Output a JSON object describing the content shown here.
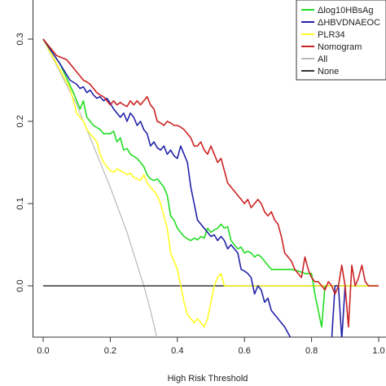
{
  "chart_data": {
    "type": "line",
    "xlabel": "High Risk Threshold",
    "ylabel": "",
    "xlim": [
      0,
      1.0
    ],
    "ylim": [
      -0.065,
      0.33
    ],
    "x_ticks": [
      0.0,
      0.2,
      0.4,
      0.6,
      0.8,
      1.0
    ],
    "x_tick_labels": [
      "0.0",
      "0.2",
      "0.4",
      "0.6",
      "0.8",
      "1.0"
    ],
    "y_ticks": [
      0.0,
      0.1,
      0.2,
      0.3
    ],
    "y_tick_labels": [
      "0.0",
      "0.1",
      "0.2",
      "0.3"
    ],
    "legend_position": "top-right",
    "series": [
      {
        "name": "Δlog10HBsAg",
        "color": "#22dd22",
        "points": [
          [
            0,
            0.3
          ],
          [
            0.05,
            0.27
          ],
          [
            0.09,
            0.235
          ],
          [
            0.11,
            0.215
          ],
          [
            0.12,
            0.225
          ],
          [
            0.13,
            0.205
          ],
          [
            0.15,
            0.195
          ],
          [
            0.17,
            0.19
          ],
          [
            0.18,
            0.185
          ],
          [
            0.2,
            0.185
          ],
          [
            0.21,
            0.188
          ],
          [
            0.22,
            0.175
          ],
          [
            0.23,
            0.18
          ],
          [
            0.24,
            0.165
          ],
          [
            0.25,
            0.167
          ],
          [
            0.26,
            0.16
          ],
          [
            0.28,
            0.155
          ],
          [
            0.29,
            0.15
          ],
          [
            0.3,
            0.145
          ],
          [
            0.31,
            0.135
          ],
          [
            0.32,
            0.13
          ],
          [
            0.33,
            0.128
          ],
          [
            0.34,
            0.13
          ],
          [
            0.35,
            0.125
          ],
          [
            0.36,
            0.12
          ],
          [
            0.37,
            0.11
          ],
          [
            0.38,
            0.085
          ],
          [
            0.39,
            0.08
          ],
          [
            0.4,
            0.07
          ],
          [
            0.41,
            0.065
          ],
          [
            0.42,
            0.06
          ],
          [
            0.43,
            0.057
          ],
          [
            0.44,
            0.055
          ],
          [
            0.45,
            0.058
          ],
          [
            0.46,
            0.056
          ],
          [
            0.47,
            0.06
          ],
          [
            0.48,
            0.058
          ],
          [
            0.49,
            0.07
          ],
          [
            0.5,
            0.065
          ],
          [
            0.51,
            0.068
          ],
          [
            0.52,
            0.07
          ],
          [
            0.53,
            0.075
          ],
          [
            0.54,
            0.07
          ],
          [
            0.55,
            0.072
          ],
          [
            0.56,
            0.055
          ],
          [
            0.57,
            0.05
          ],
          [
            0.58,
            0.045
          ],
          [
            0.59,
            0.047
          ],
          [
            0.6,
            0.04
          ],
          [
            0.61,
            0.042
          ],
          [
            0.62,
            0.04
          ],
          [
            0.63,
            0.035
          ],
          [
            0.64,
            0.038
          ],
          [
            0.65,
            0.035
          ],
          [
            0.66,
            0.03
          ],
          [
            0.67,
            0.025
          ],
          [
            0.68,
            0.02
          ],
          [
            0.7,
            0.02
          ],
          [
            0.72,
            0.02
          ],
          [
            0.74,
            0.02
          ],
          [
            0.76,
            0.018
          ],
          [
            0.78,
            0.015
          ],
          [
            0.8,
            0.015
          ],
          [
            0.81,
            -0.01
          ],
          [
            0.82,
            -0.03
          ],
          [
            0.83,
            -0.05
          ],
          [
            0.84,
            0.0
          ]
        ]
      },
      {
        "name": "ΔHBVDNAEOC",
        "color": "#2222aa",
        "points": [
          [
            0,
            0.3
          ],
          [
            0.05,
            0.27
          ],
          [
            0.08,
            0.25
          ],
          [
            0.1,
            0.245
          ],
          [
            0.11,
            0.24
          ],
          [
            0.12,
            0.242
          ],
          [
            0.13,
            0.235
          ],
          [
            0.14,
            0.238
          ],
          [
            0.15,
            0.232
          ],
          [
            0.16,
            0.228
          ],
          [
            0.17,
            0.23
          ],
          [
            0.18,
            0.225
          ],
          [
            0.19,
            0.228
          ],
          [
            0.2,
            0.222
          ],
          [
            0.21,
            0.215
          ],
          [
            0.22,
            0.21
          ],
          [
            0.23,
            0.205
          ],
          [
            0.24,
            0.21
          ],
          [
            0.25,
            0.2
          ],
          [
            0.26,
            0.21
          ],
          [
            0.27,
            0.205
          ],
          [
            0.28,
            0.195
          ],
          [
            0.29,
            0.2
          ],
          [
            0.3,
            0.19
          ],
          [
            0.31,
            0.185
          ],
          [
            0.32,
            0.17
          ],
          [
            0.33,
            0.175
          ],
          [
            0.34,
            0.168
          ],
          [
            0.35,
            0.165
          ],
          [
            0.36,
            0.17
          ],
          [
            0.37,
            0.16
          ],
          [
            0.38,
            0.165
          ],
          [
            0.39,
            0.158
          ],
          [
            0.4,
            0.155
          ],
          [
            0.41,
            0.17
          ],
          [
            0.42,
            0.16
          ],
          [
            0.43,
            0.15
          ],
          [
            0.44,
            0.12
          ],
          [
            0.45,
            0.1
          ],
          [
            0.46,
            0.08
          ],
          [
            0.47,
            0.075
          ],
          [
            0.48,
            0.07
          ],
          [
            0.49,
            0.065
          ],
          [
            0.5,
            0.06
          ],
          [
            0.51,
            0.062
          ],
          [
            0.52,
            0.055
          ],
          [
            0.53,
            0.06
          ],
          [
            0.54,
            0.055
          ],
          [
            0.55,
            0.045
          ],
          [
            0.56,
            0.05
          ],
          [
            0.57,
            0.045
          ],
          [
            0.58,
            0.04
          ],
          [
            0.59,
            0.02
          ],
          [
            0.6,
            0.018
          ],
          [
            0.61,
            0.015
          ],
          [
            0.62,
            0.01
          ],
          [
            0.63,
            -0.01
          ],
          [
            0.64,
            0.0
          ],
          [
            0.65,
            -0.005
          ],
          [
            0.66,
            -0.02
          ],
          [
            0.67,
            -0.015
          ],
          [
            0.68,
            -0.03
          ],
          [
            0.7,
            -0.04
          ],
          [
            0.72,
            -0.05
          ],
          [
            0.74,
            -0.065
          ],
          [
            0.76,
            -0.065
          ],
          [
            0.78,
            -0.065
          ],
          [
            0.79,
            -0.065
          ],
          [
            0.8,
            -0.065
          ],
          [
            0.82,
            -0.065
          ],
          [
            0.84,
            -0.065
          ],
          [
            0.86,
            -0.065
          ],
          [
            0.87,
            0.0
          ],
          [
            0.88,
            0.0
          ],
          [
            0.89,
            -0.065
          ],
          [
            0.9,
            0.0
          ]
        ]
      },
      {
        "name": "PLR34",
        "color": "#ffff22",
        "points": [
          [
            0,
            0.3
          ],
          [
            0.04,
            0.27
          ],
          [
            0.08,
            0.24
          ],
          [
            0.1,
            0.21
          ],
          [
            0.11,
            0.205
          ],
          [
            0.12,
            0.2
          ],
          [
            0.13,
            0.19
          ],
          [
            0.14,
            0.185
          ],
          [
            0.15,
            0.18
          ],
          [
            0.16,
            0.175
          ],
          [
            0.17,
            0.16
          ],
          [
            0.18,
            0.15
          ],
          [
            0.19,
            0.145
          ],
          [
            0.2,
            0.14
          ],
          [
            0.21,
            0.138
          ],
          [
            0.22,
            0.142
          ],
          [
            0.23,
            0.14
          ],
          [
            0.24,
            0.138
          ],
          [
            0.25,
            0.135
          ],
          [
            0.26,
            0.137
          ],
          [
            0.27,
            0.132
          ],
          [
            0.28,
            0.13
          ],
          [
            0.29,
            0.128
          ],
          [
            0.3,
            0.135
          ],
          [
            0.31,
            0.125
          ],
          [
            0.32,
            0.12
          ],
          [
            0.33,
            0.115
          ],
          [
            0.34,
            0.11
          ],
          [
            0.35,
            0.1
          ],
          [
            0.36,
            0.085
          ],
          [
            0.37,
            0.07
          ],
          [
            0.38,
            0.04
          ],
          [
            0.39,
            0.03
          ],
          [
            0.4,
            0.02
          ],
          [
            0.41,
            0.0
          ],
          [
            0.42,
            -0.02
          ],
          [
            0.43,
            -0.035
          ],
          [
            0.44,
            -0.04
          ],
          [
            0.45,
            -0.045
          ],
          [
            0.46,
            -0.04
          ],
          [
            0.47,
            -0.045
          ],
          [
            0.48,
            -0.05
          ],
          [
            0.49,
            -0.04
          ],
          [
            0.5,
            -0.02
          ],
          [
            0.51,
            0.0
          ],
          [
            0.52,
            0.01
          ],
          [
            0.53,
            0.015
          ],
          [
            0.54,
            0.0
          ],
          [
            0.56,
            0.0
          ],
          [
            0.6,
            0.0
          ],
          [
            0.7,
            0.0
          ],
          [
            0.8,
            0.0
          ],
          [
            0.9,
            0.0
          ],
          [
            1.0,
            0.0
          ]
        ]
      },
      {
        "name": "Nomogram",
        "color": "#cc2222",
        "points": [
          [
            0,
            0.3
          ],
          [
            0.04,
            0.28
          ],
          [
            0.07,
            0.275
          ],
          [
            0.08,
            0.27
          ],
          [
            0.09,
            0.265
          ],
          [
            0.1,
            0.26
          ],
          [
            0.11,
            0.255
          ],
          [
            0.12,
            0.25
          ],
          [
            0.13,
            0.248
          ],
          [
            0.14,
            0.245
          ],
          [
            0.15,
            0.24
          ],
          [
            0.16,
            0.235
          ],
          [
            0.17,
            0.232
          ],
          [
            0.18,
            0.23
          ],
          [
            0.19,
            0.225
          ],
          [
            0.2,
            0.22
          ],
          [
            0.21,
            0.225
          ],
          [
            0.22,
            0.22
          ],
          [
            0.23,
            0.223
          ],
          [
            0.24,
            0.22
          ],
          [
            0.25,
            0.218
          ],
          [
            0.26,
            0.225
          ],
          [
            0.27,
            0.22
          ],
          [
            0.28,
            0.225
          ],
          [
            0.29,
            0.22
          ],
          [
            0.3,
            0.225
          ],
          [
            0.31,
            0.23
          ],
          [
            0.32,
            0.22
          ],
          [
            0.33,
            0.215
          ],
          [
            0.34,
            0.2
          ],
          [
            0.35,
            0.198
          ],
          [
            0.36,
            0.195
          ],
          [
            0.37,
            0.2
          ],
          [
            0.38,
            0.198
          ],
          [
            0.39,
            0.195
          ],
          [
            0.4,
            0.195
          ],
          [
            0.41,
            0.193
          ],
          [
            0.42,
            0.19
          ],
          [
            0.43,
            0.185
          ],
          [
            0.44,
            0.18
          ],
          [
            0.45,
            0.17
          ],
          [
            0.46,
            0.17
          ],
          [
            0.47,
            0.175
          ],
          [
            0.48,
            0.165
          ],
          [
            0.49,
            0.16
          ],
          [
            0.5,
            0.17
          ],
          [
            0.51,
            0.16
          ],
          [
            0.52,
            0.15
          ],
          [
            0.53,
            0.155
          ],
          [
            0.54,
            0.14
          ],
          [
            0.55,
            0.125
          ],
          [
            0.56,
            0.12
          ],
          [
            0.57,
            0.115
          ],
          [
            0.58,
            0.11
          ],
          [
            0.59,
            0.105
          ],
          [
            0.6,
            0.1
          ],
          [
            0.61,
            0.105
          ],
          [
            0.62,
            0.095
          ],
          [
            0.63,
            0.1
          ],
          [
            0.64,
            0.105
          ],
          [
            0.65,
            0.1
          ],
          [
            0.66,
            0.09
          ],
          [
            0.67,
            0.085
          ],
          [
            0.68,
            0.09
          ],
          [
            0.69,
            0.08
          ],
          [
            0.7,
            0.075
          ],
          [
            0.71,
            0.06
          ],
          [
            0.72,
            0.04
          ],
          [
            0.73,
            0.035
          ],
          [
            0.74,
            0.03
          ],
          [
            0.75,
            0.02
          ],
          [
            0.76,
            0.015
          ],
          [
            0.77,
            0.01
          ],
          [
            0.78,
            0.035
          ],
          [
            0.79,
            0.02
          ],
          [
            0.8,
            0.01
          ],
          [
            0.81,
            0.005
          ],
          [
            0.82,
            0.005
          ],
          [
            0.83,
            0.0
          ],
          [
            0.84,
            -0.005
          ],
          [
            0.85,
            0.005
          ],
          [
            0.86,
            0.0
          ],
          [
            0.87,
            -0.01
          ],
          [
            0.88,
            0.0
          ],
          [
            0.89,
            0.025
          ],
          [
            0.9,
            0.0
          ],
          [
            0.91,
            -0.05
          ],
          [
            0.92,
            0.025
          ],
          [
            0.93,
            0.0
          ],
          [
            0.94,
            0.01
          ],
          [
            0.95,
            0.025
          ],
          [
            0.96,
            0.005
          ],
          [
            0.97,
            0.0
          ],
          [
            1.0,
            0.0
          ]
        ]
      },
      {
        "name": "All",
        "color": "#b8b8b8",
        "points": [
          [
            0,
            0.3
          ],
          [
            0.05,
            0.26
          ],
          [
            0.1,
            0.22
          ],
          [
            0.15,
            0.17
          ],
          [
            0.2,
            0.12
          ],
          [
            0.25,
            0.065
          ],
          [
            0.3,
            0.0
          ],
          [
            0.32,
            -0.03
          ],
          [
            0.34,
            -0.065
          ]
        ]
      },
      {
        "name": "None",
        "color": "#333333",
        "points": [
          [
            0,
            0.0
          ],
          [
            1.0,
            0.0
          ]
        ]
      }
    ]
  }
}
